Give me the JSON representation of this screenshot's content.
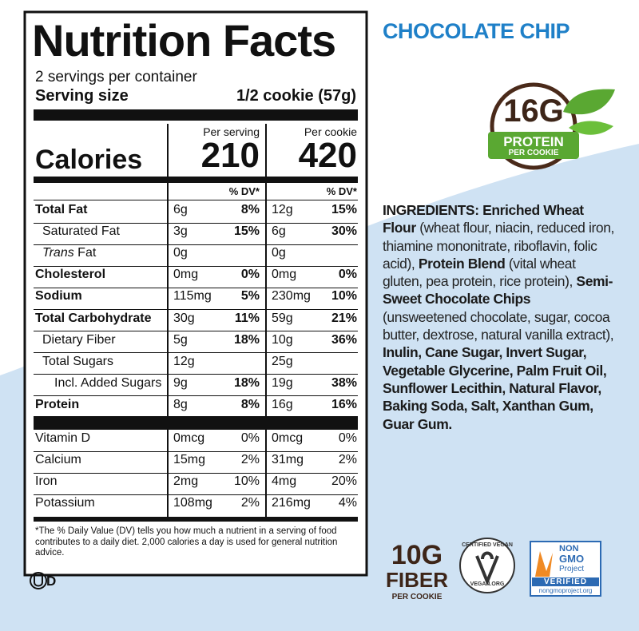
{
  "flavor": "CHOCOLATE CHIP",
  "protein_badge": {
    "amount": "16G",
    "label": "PROTEIN",
    "sublabel": "PER COOKIE"
  },
  "label": {
    "title": "Nutrition Facts",
    "servings": "2 servings per container",
    "serving_size_label": "Serving size",
    "serving_size": "1/2 cookie (57g)",
    "columns": [
      "Per serving",
      "Per cookie"
    ],
    "calories_label": "Calories",
    "calories": [
      210,
      420
    ],
    "dv_header": "% DV*",
    "rows": [
      {
        "name": "Total Fat",
        "bold": true,
        "indent": 0,
        "amounts": [
          "6g",
          "12g"
        ],
        "dv": [
          "8%",
          "15%"
        ]
      },
      {
        "name": "Saturated Fat",
        "bold": false,
        "indent": 1,
        "amounts": [
          "3g",
          "6g"
        ],
        "dv": [
          "15%",
          "30%"
        ]
      },
      {
        "italic_prefix": "Trans",
        "name": "Fat",
        "bold": false,
        "indent": 1,
        "amounts": [
          "0g",
          "0g"
        ],
        "dv": null
      },
      {
        "name": "Cholesterol",
        "bold": true,
        "indent": 0,
        "amounts": [
          "0mg",
          "0mg"
        ],
        "dv": [
          "0%",
          "0%"
        ]
      },
      {
        "name": "Sodium",
        "bold": true,
        "indent": 0,
        "amounts": [
          "115mg",
          "230mg"
        ],
        "dv": [
          "5%",
          "10%"
        ]
      },
      {
        "name": "Total Carbohydrate",
        "bold": true,
        "indent": 0,
        "amounts": [
          "30g",
          "59g"
        ],
        "dv": [
          "11%",
          "21%"
        ]
      },
      {
        "name": "Dietary Fiber",
        "bold": false,
        "indent": 1,
        "amounts": [
          "5g",
          "10g"
        ],
        "dv": [
          "18%",
          "36%"
        ]
      },
      {
        "name": "Total Sugars",
        "bold": false,
        "indent": 1,
        "amounts": [
          "12g",
          "25g"
        ],
        "dv": null
      },
      {
        "name": "Incl. Added Sugars",
        "bold": false,
        "indent": 2,
        "amounts": [
          "9g",
          "19g"
        ],
        "dv": [
          "18%",
          "38%"
        ]
      },
      {
        "name": "Protein",
        "bold": true,
        "indent": 0,
        "amounts": [
          "8g",
          "16g"
        ],
        "dv": [
          "8%",
          "16%"
        ]
      }
    ],
    "vitamins": [
      {
        "name": "Vitamin D",
        "amounts": [
          "0mcg",
          "0mcg"
        ],
        "dv": [
          "0%",
          "0%"
        ]
      },
      {
        "name": "Calcium",
        "amounts": [
          "15mg",
          "31mg"
        ],
        "dv": [
          "2%",
          "2%"
        ]
      },
      {
        "name": "Iron",
        "amounts": [
          "2mg",
          "4mg"
        ],
        "dv": [
          "10%",
          "20%"
        ]
      },
      {
        "name": "Potassium",
        "amounts": [
          "108mg",
          "216mg"
        ],
        "dv": [
          "2%",
          "4%"
        ]
      }
    ],
    "footnote": "*The % Daily Value (DV) tells you how much a nutrient in a serving of food contributes to a daily diet. 2,000 calories a day is used for general nutrition advice."
  },
  "ingredients": [
    {
      "text": "INGREDIENTS: Enriched Wheat Flour",
      "bold": true
    },
    {
      "text": " (wheat flour, niacin, reduced iron, thiamine mononitrate, riboflavin, folic acid), ",
      "bold": false
    },
    {
      "text": "Protein Blend",
      "bold": true
    },
    {
      "text": " (vital wheat gluten, pea protein, rice protein), ",
      "bold": false
    },
    {
      "text": "Semi-Sweet Chocolate Chips",
      "bold": true
    },
    {
      "text": " (unsweetened chocolate, sugar, cocoa butter, dextrose, natural vanilla extract), ",
      "bold": false
    },
    {
      "text": "Inulin, Cane Sugar, Invert Sugar, Vegetable Glycerine, Palm Fruit Oil, Sunflower Lecithin, Natural Flavor, Baking Soda, Salt, Xanthan Gum, Guar Gum.",
      "bold": true
    }
  ],
  "fiber_badge": {
    "amount": "10G",
    "label": "FIBER",
    "sublabel": "PER COOKIE"
  },
  "vegan_logo": {
    "top": "CERTIFIED VEGAN",
    "bottom": "VEGAN.ORG"
  },
  "nongmo_logo": {
    "top": "NON",
    "middle": "GMO",
    "project": "Project",
    "verified": "VERIFIED",
    "url": "nongmoproject.org"
  },
  "kosher": "D"
}
